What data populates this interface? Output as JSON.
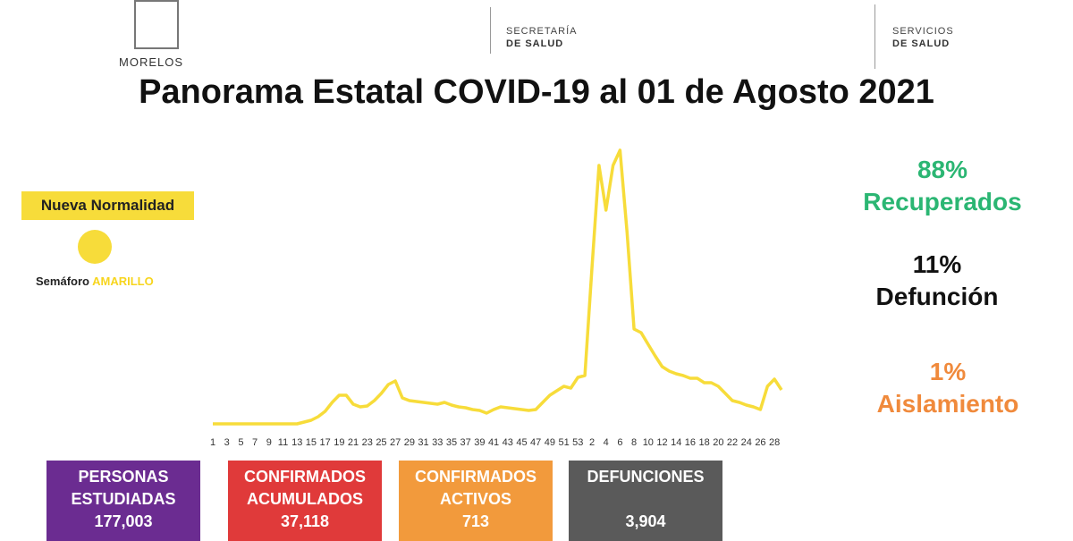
{
  "header": {
    "logo_text": "MORELOS",
    "secretaria": [
      "SECRETARÍA",
      "DE SALUD"
    ],
    "servicios": [
      "SERVICIOS",
      "DE SALUD"
    ]
  },
  "title": "Panorama Estatal COVID-19 al 01 de Agosto 2021",
  "status": {
    "box": "Nueva Normalidad",
    "label": "Semáforo",
    "level": "AMARILLO"
  },
  "stats": [
    {
      "value": "88%",
      "label": "Recuperados"
    },
    {
      "value": "11%",
      "label": "Defunción"
    },
    {
      "value": "1%",
      "label": "Aislamiento"
    }
  ],
  "cards": [
    {
      "label": "PERSONAS ESTUDIADAS",
      "value": "177,003"
    },
    {
      "label": "CONFIRMADOS ACUMULADOS",
      "value": "37,118"
    },
    {
      "label": "CONFIRMADOS ACTIVOS",
      "value": "713"
    },
    {
      "label": "DEFUNCIONES",
      "value": "3,904"
    }
  ],
  "chart_data": {
    "type": "line",
    "color": "#f7dc3a",
    "categories": [
      "1",
      null,
      "3",
      null,
      "5",
      null,
      "7",
      null,
      "9",
      null,
      "11",
      null,
      "13",
      null,
      "15",
      null,
      "17",
      null,
      "19",
      null,
      "21",
      null,
      "23",
      null,
      "25",
      null,
      "27",
      null,
      "29",
      null,
      "31",
      null,
      "33",
      null,
      "35",
      null,
      "37",
      null,
      "39",
      null,
      "41",
      null,
      "43",
      null,
      "45",
      null,
      "47",
      null,
      "49",
      null,
      "51",
      null,
      "53",
      null,
      "2",
      null,
      "4",
      null,
      "6",
      null,
      "8",
      null,
      "10",
      null,
      "12",
      null,
      "14",
      null,
      "16",
      null,
      "18",
      null,
      "20",
      null,
      "22",
      null,
      "24",
      null,
      "26",
      null,
      "28",
      null
    ],
    "values": [
      10,
      10,
      10,
      10,
      10,
      10,
      10,
      10,
      10,
      10,
      10,
      10,
      10,
      30,
      50,
      90,
      150,
      250,
      330,
      330,
      230,
      200,
      210,
      270,
      350,
      450,
      490,
      300,
      270,
      260,
      250,
      240,
      230,
      250,
      220,
      200,
      190,
      170,
      160,
      130,
      170,
      200,
      190,
      180,
      170,
      160,
      170,
      250,
      330,
      380,
      430,
      410,
      530,
      550,
      1750,
      2900,
      2400,
      2900,
      3070,
      2150,
      1070,
      1030,
      900,
      770,
      650,
      600,
      570,
      550,
      520,
      520,
      470,
      470,
      430,
      350,
      270,
      250,
      220,
      200,
      170,
      430,
      510,
      390
    ],
    "ylim": [
      0,
      3200
    ]
  }
}
